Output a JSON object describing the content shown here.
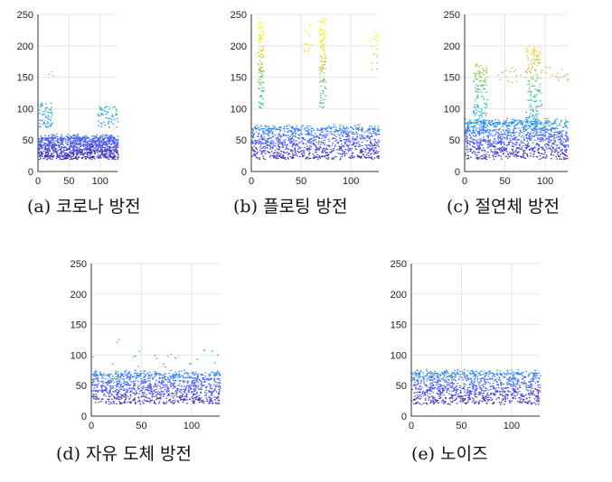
{
  "figure": {
    "chart_data": [
      {
        "type": "scatter",
        "caption": "(a) 코로나 방전",
        "xlim": [
          0,
          128
        ],
        "ylim": [
          0,
          250
        ],
        "xticks": [
          0,
          50,
          100
        ],
        "yticks": [
          0,
          50,
          100,
          150,
          200,
          250
        ],
        "grid": true,
        "bulk": {
          "y_min": 20,
          "y_max": 55
        },
        "clusters": [
          {
            "x": [
              0,
              22
            ],
            "y": [
              70,
              110
            ],
            "count": 60
          },
          {
            "x": [
              95,
              128
            ],
            "y": [
              70,
              105
            ],
            "count": 55
          },
          {
            "x": [
              10,
              30
            ],
            "y": [
              150,
              165
            ],
            "count": 3
          }
        ]
      },
      {
        "type": "scatter",
        "caption": "(b) 플로팅 방전",
        "xlim": [
          0,
          128
        ],
        "ylim": [
          0,
          250
        ],
        "xticks": [
          0,
          50,
          100
        ],
        "yticks": [
          0,
          50,
          100,
          150,
          200,
          250
        ],
        "grid": true,
        "bulk": {
          "y_min": 20,
          "y_max": 70
        },
        "clusters": [
          {
            "x": [
              6,
              12
            ],
            "y": [
              100,
              245
            ],
            "count": 120
          },
          {
            "x": [
              68,
              74
            ],
            "y": [
              100,
              245
            ],
            "count": 120
          },
          {
            "x": [
              50,
              60
            ],
            "y": [
              190,
              235
            ],
            "count": 15
          },
          {
            "x": [
              118,
              126
            ],
            "y": [
              160,
              230
            ],
            "count": 20
          }
        ]
      },
      {
        "type": "scatter",
        "caption": "(c) 절연체 방전",
        "xlim": [
          0,
          128
        ],
        "ylim": [
          0,
          250
        ],
        "xticks": [
          0,
          50,
          100
        ],
        "yticks": [
          0,
          50,
          100,
          150,
          200,
          250
        ],
        "grid": true,
        "bulk": {
          "y_min": 20,
          "y_max": 80
        },
        "clusters": [
          {
            "x": [
              10,
              28
            ],
            "y": [
              60,
              175
            ],
            "count": 150
          },
          {
            "x": [
              75,
              95
            ],
            "y": [
              60,
              200
            ],
            "count": 190
          },
          {
            "x": [
              40,
              70
            ],
            "y": [
              140,
              170
            ],
            "count": 15
          },
          {
            "x": [
              100,
              128
            ],
            "y": [
              145,
              170
            ],
            "count": 15
          }
        ]
      },
      {
        "type": "scatter",
        "caption": "(d) 자유 도체 방전",
        "xlim": [
          0,
          128
        ],
        "ylim": [
          0,
          250
        ],
        "xticks": [
          0,
          50,
          100
        ],
        "yticks": [
          0,
          50,
          100,
          150,
          200,
          250
        ],
        "grid": true,
        "bulk": {
          "y_min": 20,
          "y_max": 70
        },
        "clusters": [
          {
            "x": [
              0,
              128
            ],
            "y": [
              70,
              110
            ],
            "count": 25
          },
          {
            "x": [
              25,
              35
            ],
            "y": [
              115,
              130
            ],
            "count": 2
          }
        ]
      },
      {
        "type": "scatter",
        "caption": "(e) 노이즈",
        "xlim": [
          0,
          128
        ],
        "ylim": [
          0,
          250
        ],
        "xticks": [
          0,
          50,
          100
        ],
        "yticks": [
          0,
          50,
          100,
          150,
          200,
          250
        ],
        "grid": true,
        "bulk": {
          "y_min": 20,
          "y_max": 72
        },
        "clusters": []
      }
    ]
  }
}
